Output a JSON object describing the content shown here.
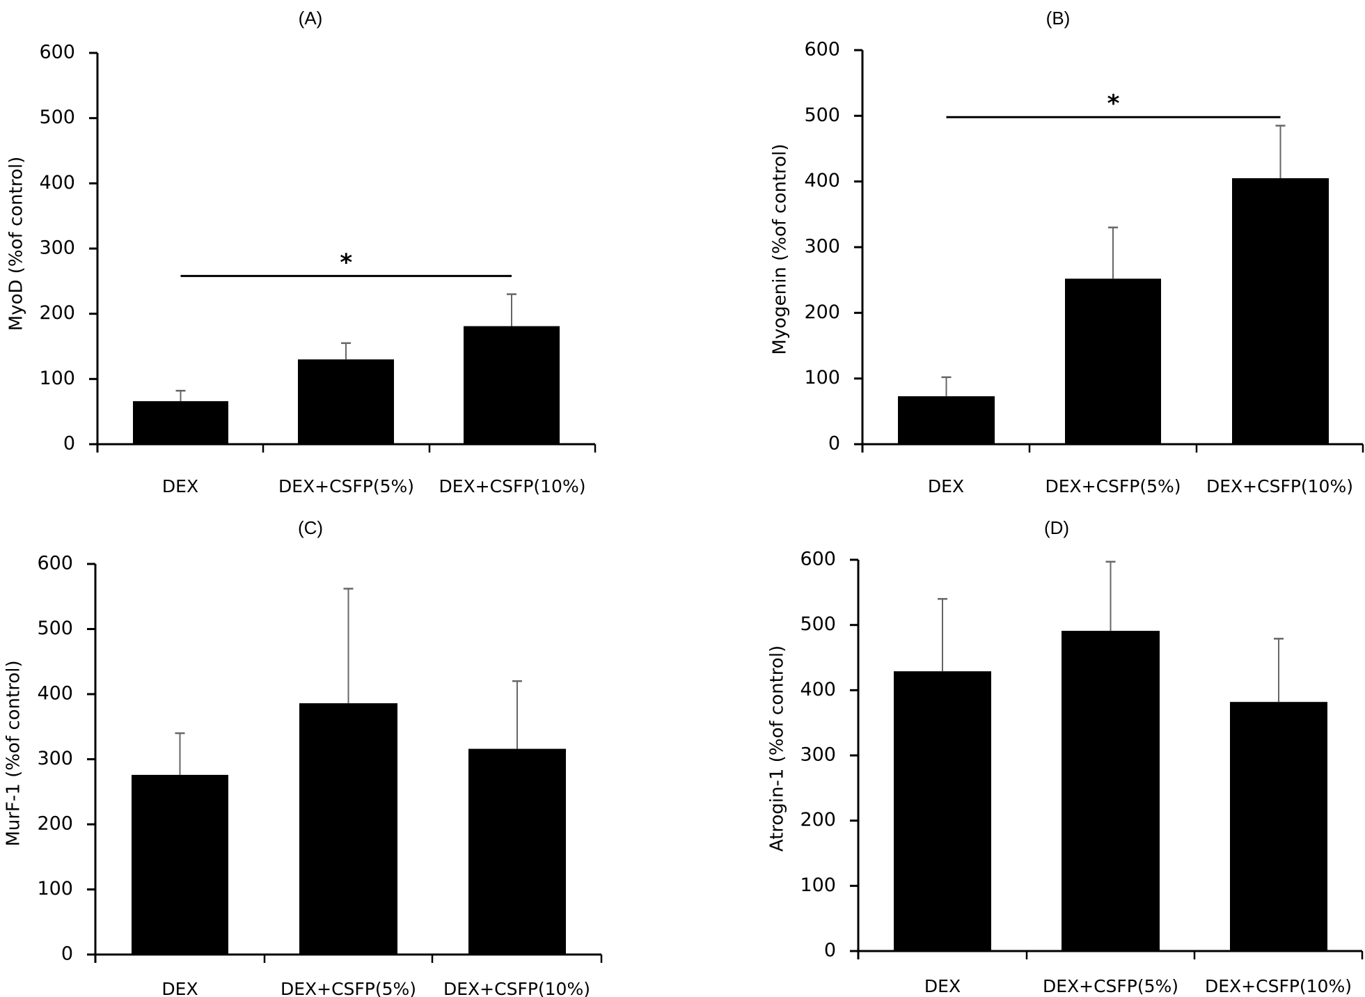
{
  "chart_data": [
    {
      "type": "bar",
      "panel": "(A)",
      "title": "(A)",
      "xlabel": "",
      "ylabel": "MyoD (%of control)",
      "ylim": [
        0,
        600
      ],
      "yticks": [
        "0",
        "100",
        "200",
        "300",
        "400",
        "500",
        "600"
      ],
      "categories": [
        "DEX",
        "DEX+CSFP(5%)",
        "DEX+CSFP(10%)"
      ],
      "values": [
        66,
        130,
        181
      ],
      "error_upper": [
        82,
        155,
        230
      ],
      "bar_color": "#000000",
      "error_color": "#666666",
      "grid": false,
      "significance": {
        "from": 0,
        "to": 2,
        "level": 258,
        "label": "*"
      }
    },
    {
      "type": "bar",
      "panel": "(B)",
      "title": "(B)",
      "xlabel": "",
      "ylabel": "Myogenin (%of control)",
      "ylim": [
        0,
        600
      ],
      "yticks": [
        "0",
        "100",
        "200",
        "300",
        "400",
        "500",
        "600"
      ],
      "categories": [
        "DEX",
        "DEX+CSFP(5%)",
        "DEX+CSFP(10%)"
      ],
      "values": [
        73,
        252,
        405
      ],
      "error_upper": [
        102,
        330,
        485
      ],
      "bar_color": "#000000",
      "error_color": "#666666",
      "grid": false,
      "significance": {
        "from": 0,
        "to": 2,
        "level": 498,
        "label": "*"
      }
    },
    {
      "type": "bar",
      "panel": "(C)",
      "title": "(C)",
      "xlabel": "",
      "ylabel": "MurF-1 (%of control)",
      "ylim": [
        0,
        600
      ],
      "yticks": [
        "0",
        "100",
        "200",
        "300",
        "400",
        "500",
        "600"
      ],
      "categories": [
        "DEX",
        "DEX+CSFP(5%)",
        "DEX+CSFP(10%)"
      ],
      "values": [
        276,
        386,
        316
      ],
      "error_upper": [
        340,
        562,
        420
      ],
      "bar_color": "#000000",
      "error_color": "#666666",
      "grid": false,
      "significance": null
    },
    {
      "type": "bar",
      "panel": "(D)",
      "title": "(D)",
      "xlabel": "",
      "ylabel": "Atrogin-1 (%of control)",
      "ylim": [
        0,
        600
      ],
      "yticks": [
        "0",
        "100",
        "200",
        "300",
        "400",
        "500",
        "600"
      ],
      "categories": [
        "DEX",
        "DEX+CSFP(5%)",
        "DEX+CSFP(10%)"
      ],
      "values": [
        429,
        491,
        382
      ],
      "error_upper": [
        540,
        597,
        479
      ],
      "bar_color": "#000000",
      "error_color": "#666666",
      "grid": false,
      "significance": null
    }
  ]
}
